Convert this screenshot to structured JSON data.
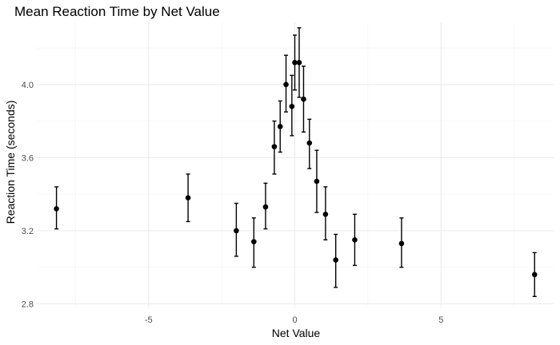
{
  "chart_data": {
    "type": "scatter",
    "title": "Mean Reaction Time by Net Value",
    "xlabel": "Net Value",
    "ylabel": "Reaction Time (seconds)",
    "xlim": [
      -8.85,
      8.85
    ],
    "ylim": [
      2.78,
      4.34
    ],
    "xticks": [
      -5,
      0,
      5
    ],
    "yticks": [
      2.8,
      3.2,
      3.6,
      4.0
    ],
    "xtick_labels": [
      "-5",
      "0",
      "5"
    ],
    "ytick_labels": [
      "2.8",
      "3.2",
      "3.6",
      "4.0"
    ],
    "grid": true,
    "legend": "none",
    "point_color": "#000000",
    "points": [
      {
        "x": -8.15,
        "y": 3.32,
        "ymin": 3.21,
        "ymax": 3.44
      },
      {
        "x": -3.65,
        "y": 3.38,
        "ymin": 3.25,
        "ymax": 3.51
      },
      {
        "x": -2.0,
        "y": 3.2,
        "ymin": 3.06,
        "ymax": 3.35
      },
      {
        "x": -1.4,
        "y": 3.14,
        "ymin": 3.0,
        "ymax": 3.27
      },
      {
        "x": -1.0,
        "y": 3.33,
        "ymin": 3.21,
        "ymax": 3.46
      },
      {
        "x": -0.7,
        "y": 3.66,
        "ymin": 3.51,
        "ymax": 3.8
      },
      {
        "x": -0.5,
        "y": 3.77,
        "ymin": 3.63,
        "ymax": 3.91
      },
      {
        "x": -0.3,
        "y": 4.0,
        "ymin": 3.85,
        "ymax": 4.16
      },
      {
        "x": -0.1,
        "y": 3.88,
        "ymin": 3.72,
        "ymax": 4.05
      },
      {
        "x": 0.0,
        "y": 4.12,
        "ymin": 3.97,
        "ymax": 4.27
      },
      {
        "x": 0.15,
        "y": 4.12,
        "ymin": 3.93,
        "ymax": 4.31
      },
      {
        "x": 0.3,
        "y": 3.92,
        "ymin": 3.74,
        "ymax": 4.1
      },
      {
        "x": 0.5,
        "y": 3.68,
        "ymin": 3.54,
        "ymax": 3.81
      },
      {
        "x": 0.75,
        "y": 3.47,
        "ymin": 3.3,
        "ymax": 3.64
      },
      {
        "x": 1.05,
        "y": 3.29,
        "ymin": 3.15,
        "ymax": 3.44
      },
      {
        "x": 1.4,
        "y": 3.04,
        "ymin": 2.89,
        "ymax": 3.18
      },
      {
        "x": 2.05,
        "y": 3.15,
        "ymin": 3.01,
        "ymax": 3.29
      },
      {
        "x": 3.65,
        "y": 3.13,
        "ymin": 3.0,
        "ymax": 3.27
      },
      {
        "x": 8.2,
        "y": 2.96,
        "ymin": 2.84,
        "ymax": 3.08
      }
    ]
  }
}
